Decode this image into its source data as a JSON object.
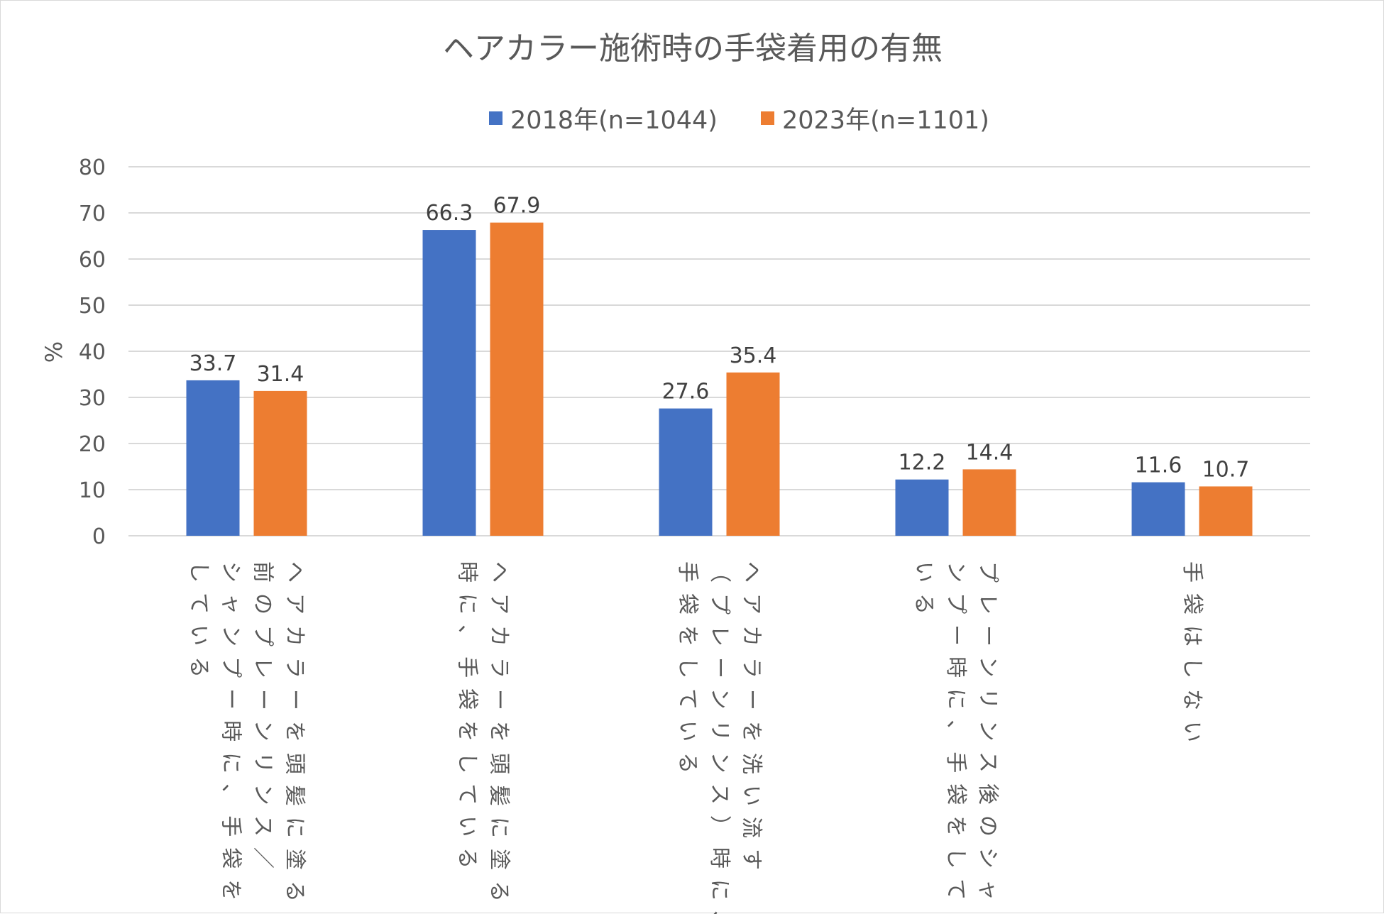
{
  "chart_data": {
    "type": "bar",
    "title": "ヘアカラー施術時の手袋着用の有無",
    "ylabel": "%",
    "xlabel": "",
    "ylim": [
      0,
      80
    ],
    "yticks": [
      0,
      10,
      20,
      30,
      40,
      50,
      60,
      70,
      80
    ],
    "grid": true,
    "legend_position": "top",
    "categories": [
      "ヘアカラーを頭髪に塗る前のプレーンリンス／シャンプー時に、手袋をしている",
      "ヘアカラーを頭髪に塗る時に、手袋をしている",
      "ヘアカラーを洗い流す（プレーンリンス）時に、手袋をしている",
      "プレーンリンス後のシャンプー時に、手袋をしている",
      "手袋はしない"
    ],
    "category_lines": [
      [
        "ヘアカラーを頭髪に塗る",
        "前のプレーンリンス／",
        "シャンプー時に、手袋を",
        "している"
      ],
      [
        "ヘアカラーを頭髪に塗る",
        "時に、手袋をしている"
      ],
      [
        "ヘアカラーを洗い流す",
        "（プレーンリンス）時に、",
        "手袋をしている"
      ],
      [
        "プレーンリンス後のシャ",
        "ンプー時に、手袋をして",
        "いる"
      ],
      [
        "手袋はしない"
      ]
    ],
    "series": [
      {
        "name": "2018年(n=1044)",
        "color": "#4472c4",
        "values": [
          33.7,
          66.3,
          27.6,
          12.2,
          11.6
        ],
        "labels": [
          "33.7",
          "66.3",
          "27.6",
          "12.2",
          "11.6"
        ]
      },
      {
        "name": "2023年(n=1101)",
        "color": "#ed7d31",
        "values": [
          31.4,
          67.9,
          35.4,
          14.4,
          10.7
        ],
        "labels": [
          "31.4",
          "67.9",
          "35.4",
          "14.4",
          "10.7"
        ]
      }
    ]
  }
}
